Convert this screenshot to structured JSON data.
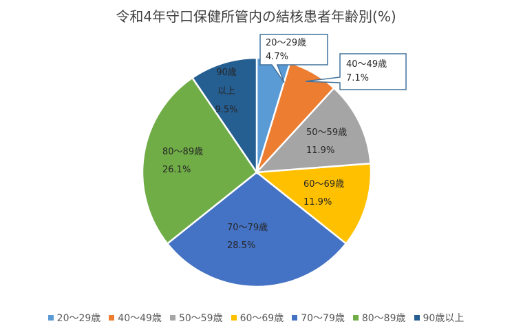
{
  "chart_data": {
    "type": "pie",
    "title": "令和4年守口保健所管内の結核患者年齢別(%)",
    "slices": [
      {
        "label": "20～29歳",
        "value": 4.7,
        "value_label": "4.7%",
        "color": "#5b9bd5",
        "data_label_lines": [
          "20～29歳",
          "4.7%"
        ]
      },
      {
        "label": "40～49歳",
        "value": 7.1,
        "value_label": "7.1%",
        "color": "#ed7d31",
        "data_label_lines": [
          "40～49歳",
          "7.1%"
        ]
      },
      {
        "label": "50～59歳",
        "value": 11.9,
        "value_label": "11.9%",
        "color": "#a5a5a5",
        "data_label_lines": [
          "50～59歳",
          "11.9%"
        ]
      },
      {
        "label": "60～69歳",
        "value": 11.9,
        "value_label": "11.9%",
        "color": "#ffc000",
        "data_label_lines": [
          "60～69歳",
          "11.9%"
        ]
      },
      {
        "label": "70～79歳",
        "value": 28.5,
        "value_label": "28.5%",
        "color": "#4472c4",
        "data_label_lines": [
          "70～79歳",
          "28.5%"
        ]
      },
      {
        "label": "80～89歳",
        "value": 26.1,
        "value_label": "26.1%",
        "color": "#70ad47",
        "data_label_lines": [
          "80～89歳",
          "26.1%"
        ]
      },
      {
        "label": "90歳以上",
        "value": 9.5,
        "value_label": "9.5%",
        "color": "#255e91",
        "data_label_lines": [
          "90歳",
          "以上",
          "9.5%"
        ]
      }
    ],
    "legend_position": "bottom"
  }
}
